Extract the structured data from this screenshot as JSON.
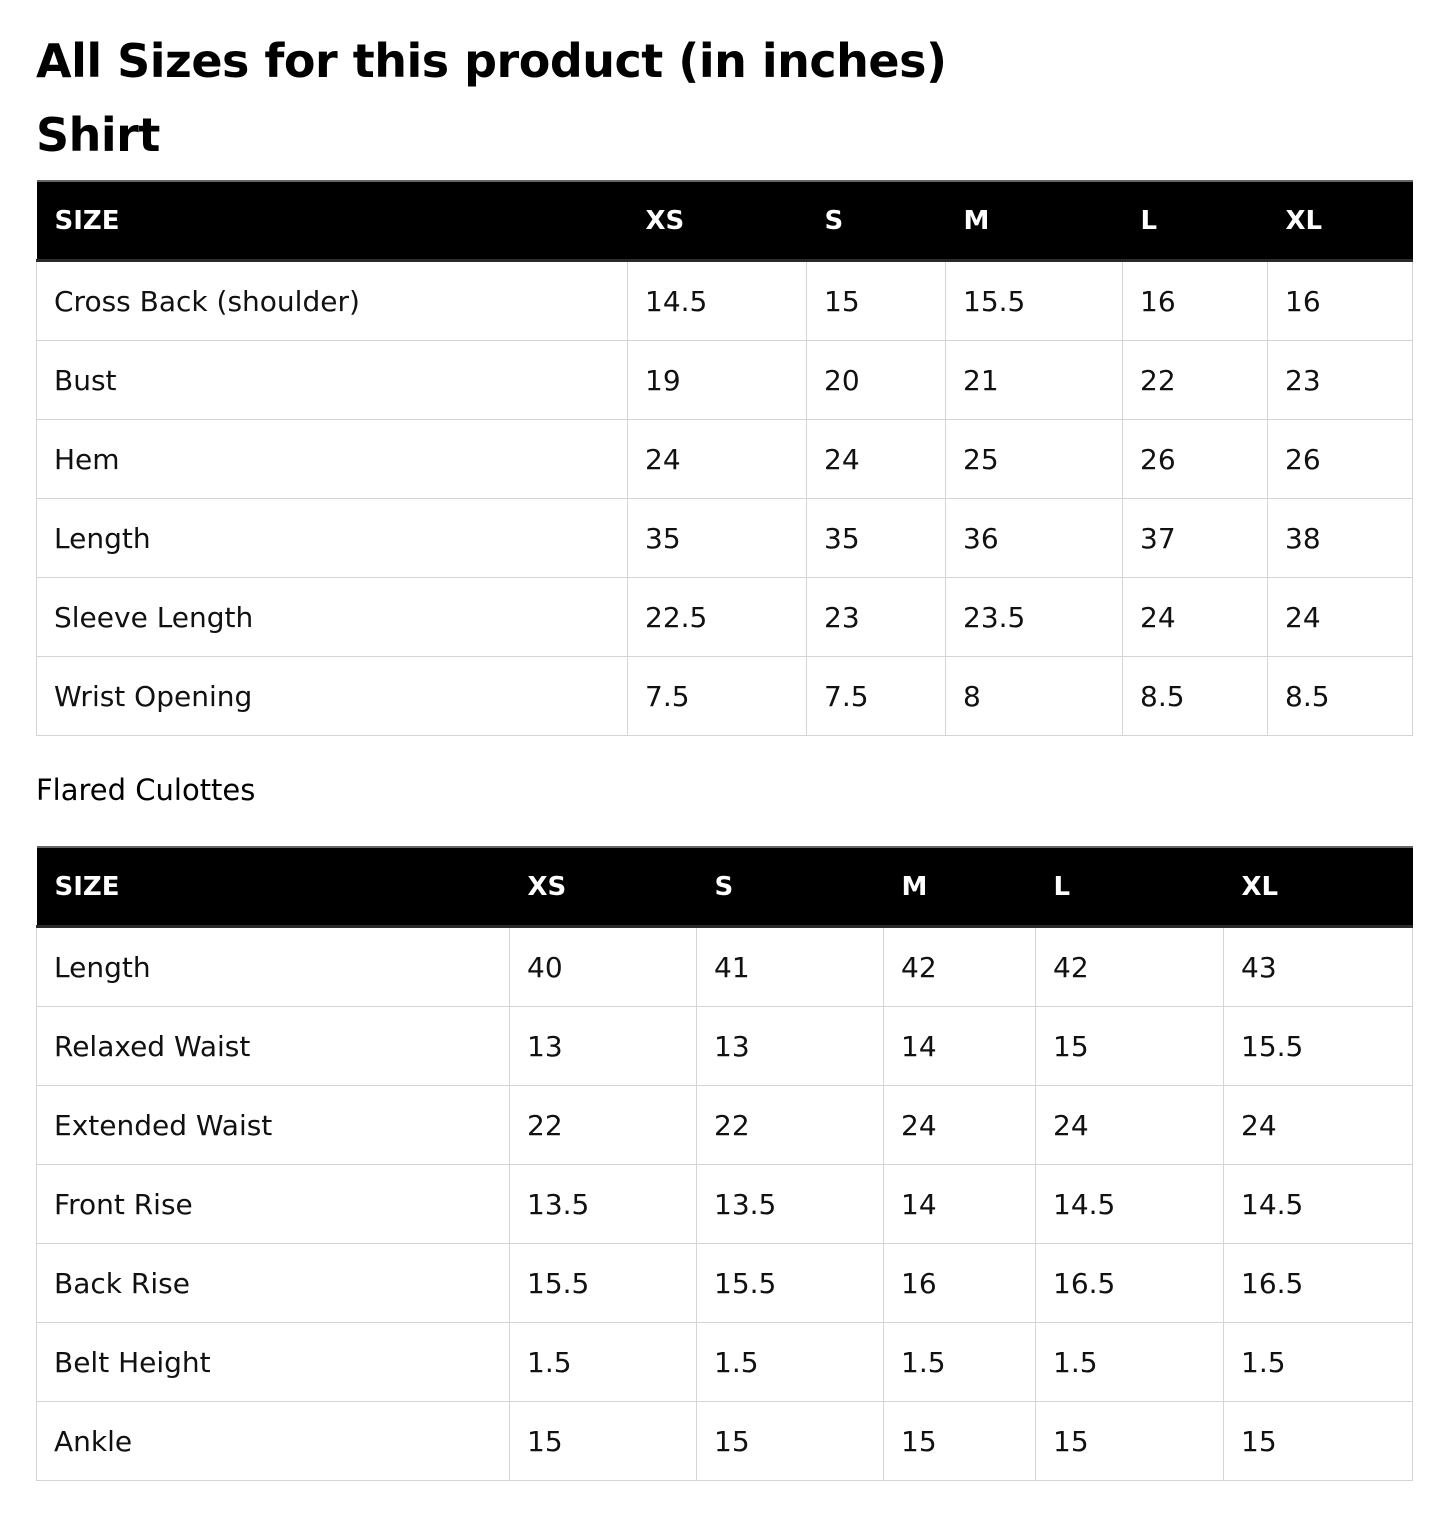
{
  "page": {
    "title": "All Sizes for this product (in inches)"
  },
  "shirt": {
    "title": "Shirt",
    "header": [
      "SIZE",
      "XS",
      "S",
      "M",
      "L",
      "XL"
    ],
    "rows": [
      [
        "Cross Back (shoulder)",
        "14.5",
        "15",
        "15.5",
        "16",
        "16"
      ],
      [
        "Bust",
        "19",
        "20",
        "21",
        "22",
        "23"
      ],
      [
        "Hem",
        "24",
        "24",
        "25",
        "26",
        "26"
      ],
      [
        "Length",
        "35",
        "35",
        "36",
        "37",
        "38"
      ],
      [
        "Sleeve Length",
        "22.5",
        "23",
        "23.5",
        "24",
        "24"
      ],
      [
        "Wrist Opening",
        "7.5",
        "7.5",
        "8",
        "8.5",
        "8.5"
      ]
    ]
  },
  "culottes": {
    "title": "Flared Culottes",
    "header": [
      "SIZE",
      "XS",
      "S",
      "M",
      "L",
      "XL"
    ],
    "rows": [
      [
        "Length",
        "40",
        "41",
        "42",
        "42",
        "43"
      ],
      [
        "Relaxed Waist",
        "13",
        "13",
        "14",
        "15",
        "15.5"
      ],
      [
        "Extended Waist",
        "22",
        "22",
        "24",
        "24",
        "24"
      ],
      [
        "Front Rise",
        "13.5",
        "13.5",
        "14",
        "14.5",
        "14.5"
      ],
      [
        "Back Rise",
        "15.5",
        "15.5",
        "16",
        "16.5",
        "16.5"
      ],
      [
        "Belt Height",
        "1.5",
        "1.5",
        "1.5",
        "1.5",
        "1.5"
      ],
      [
        "Ankle",
        "15",
        "15",
        "15",
        "15",
        "15"
      ]
    ]
  }
}
